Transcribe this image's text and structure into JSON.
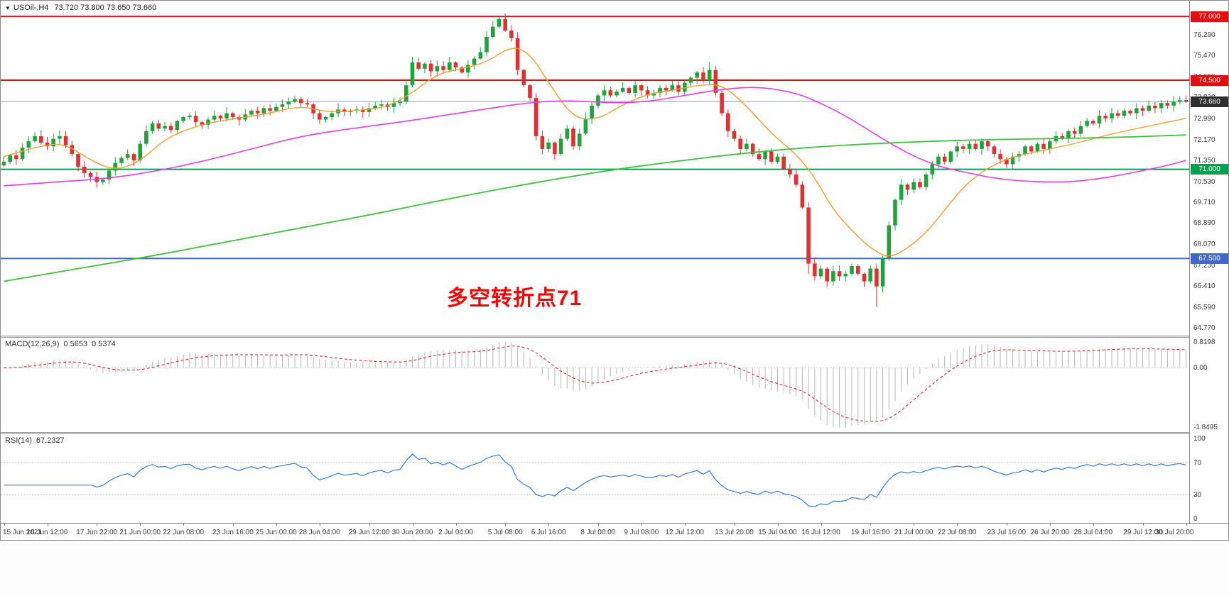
{
  "header": {
    "symbol": "USOil-,H4",
    "ohlc_text": "73.720 73.800 73.650 73.660"
  },
  "annotation": {
    "text": "多空转折点71",
    "color": "#ff0000"
  },
  "colors": {
    "candle_up": "#1fa33c",
    "candle_down": "#e03030",
    "macd_histogram": "#b6b6b6",
    "macd_signal": "#e02020",
    "rsi_line": "#3a7bd5",
    "level_line": "#c0c0c0"
  },
  "price_axis": {
    "ticks": [
      "76.290",
      "75.470",
      "74.650",
      "73.830",
      "72.990",
      "72.170",
      "71.350",
      "70.530",
      "69.710",
      "68.890",
      "68.070",
      "67.230",
      "66.410",
      "65.590",
      "64.770"
    ],
    "badges": [
      {
        "text": "77.000",
        "price": 77.0,
        "bg": "#dd1111"
      },
      {
        "text": "74.500",
        "price": 74.5,
        "bg": "#dd1111"
      },
      {
        "text": "71.000",
        "price": 71.0,
        "bg": "#00a24d"
      },
      {
        "text": "67.500",
        "price": 67.5,
        "bg": "#3f66c9"
      },
      {
        "text": "73.660",
        "price": 73.66,
        "bg": "#2e2e2e"
      }
    ]
  },
  "indicators": {
    "macd": {
      "name": "MACD(12,26,9)",
      "value_main": "0.5653",
      "value_signal": "0.5374",
      "axis_top": "0.8198",
      "axis_zero": "0.00",
      "axis_bottom": "-1.8495",
      "fast": 12,
      "slow": 26,
      "signal": 9
    },
    "rsi": {
      "name": "RSI(14)",
      "value": "67.2327",
      "period": 14,
      "axis": [
        "100",
        "70",
        "30",
        "0"
      ],
      "levels": [
        70,
        30
      ]
    }
  },
  "time_axis": [
    "15 Jun 2021",
    "16 Jun 12:00",
    "17 Jun 22:00",
    "21 Jun 00:00",
    "22 Jun 08:00",
    "23 Jun 16:00",
    "25 Jun 00:00",
    "28 Jun 04:00",
    "29 Jun 12:00",
    "30 Jun 20:00",
    "2 Jul 04:00",
    "5 Jul 08:00",
    "6 Jul 16:00",
    "8 Jul 00:00",
    "9 Jul 08:00",
    "12 Jul 12:00",
    "13 Jul 20:00",
    "15 Jul 04:00",
    "16 Jul 12:00",
    "19 Jul 16:00",
    "21 Jul 00:00",
    "22 Jul 08:00",
    "23 Jul 16:00",
    "26 Jul 20:00",
    "28 Jul 04:00",
    "29 Jul 12:00",
    "30 Jul 20:00"
  ],
  "chart_data": {
    "type": "candlestick",
    "symbol": "USOil",
    "timeframe": "H4",
    "title": "USOil-,H4",
    "current_bar": {
      "open": 73.72,
      "high": 73.8,
      "low": 73.65,
      "close": 73.66
    },
    "view": {
      "price_top": 77.62,
      "price_bottom": 64.47
    },
    "first_open": 71.15,
    "closes": [
      71.3,
      71.55,
      71.4,
      71.85,
      72.1,
      72.3,
      72.05,
      71.9,
      72.2,
      72.3,
      71.95,
      71.6,
      71.1,
      70.85,
      70.7,
      70.5,
      70.6,
      70.95,
      71.25,
      71.45,
      71.6,
      71.35,
      72.0,
      72.5,
      72.8,
      72.6,
      72.7,
      72.55,
      72.9,
      73.05,
      73.1,
      72.85,
      72.75,
      72.95,
      73.1,
      73.0,
      73.2,
      73.05,
      72.95,
      73.15,
      73.3,
      73.2,
      73.4,
      73.3,
      73.45,
      73.55,
      73.65,
      73.75,
      73.6,
      73.55,
      73.2,
      72.95,
      73.05,
      73.2,
      73.35,
      73.25,
      73.3,
      73.35,
      73.25,
      73.4,
      73.5,
      73.55,
      73.45,
      73.6,
      73.65,
      74.3,
      75.2,
      74.95,
      75.15,
      74.85,
      75.05,
      74.9,
      75.2,
      75.0,
      74.8,
      75.1,
      75.35,
      75.6,
      76.2,
      76.6,
      76.9,
      76.45,
      76.15,
      74.9,
      74.3,
      73.8,
      72.3,
      71.8,
      72.05,
      71.6,
      72.2,
      72.6,
      71.9,
      72.4,
      73.0,
      73.5,
      73.9,
      74.1,
      73.9,
      74.05,
      74.2,
      74.0,
      74.3,
      74.1,
      73.9,
      74.0,
      74.2,
      74.1,
      74.3,
      74.05,
      74.4,
      74.6,
      74.8,
      74.5,
      74.9,
      74.0,
      73.2,
      72.5,
      72.2,
      71.8,
      72.0,
      71.6,
      71.4,
      71.7,
      71.3,
      71.5,
      71.0,
      70.8,
      70.4,
      69.5,
      67.3,
      66.8,
      67.1,
      66.6,
      67.0,
      66.8,
      66.9,
      67.2,
      66.9,
      66.6,
      67.1,
      66.4,
      67.5,
      68.8,
      69.8,
      70.4,
      70.2,
      70.5,
      70.3,
      70.8,
      71.2,
      71.5,
      71.3,
      71.7,
      71.9,
      71.8,
      72.0,
      71.8,
      72.1,
      71.9,
      71.6,
      71.4,
      71.2,
      71.5,
      71.6,
      71.9,
      71.7,
      72.0,
      71.8,
      72.1,
      72.3,
      72.2,
      72.5,
      72.4,
      72.7,
      72.9,
      72.8,
      73.1,
      73.0,
      73.2,
      73.1,
      73.3,
      73.2,
      73.4,
      73.3,
      73.5,
      73.4,
      73.6,
      73.5,
      73.65,
      73.72,
      73.66
    ],
    "wick_overrides": {
      "80": {
        "high": 76.98
      },
      "114": {
        "high": 75.22
      },
      "130": {
        "low": 66.9
      },
      "141": {
        "low": 65.59
      }
    },
    "h_lines": [
      {
        "price": 77.0,
        "color": "#dd1111",
        "width": 2
      },
      {
        "price": 74.5,
        "color": "#dd1111",
        "width": 2
      },
      {
        "price": 71.0,
        "color": "#00a24d",
        "width": 2
      },
      {
        "price": 67.5,
        "color": "#3f66c9",
        "width": 2
      }
    ],
    "bid_line": {
      "price": 73.66,
      "color": "#7d9ec8",
      "label": "73.660"
    },
    "moving_averages": [
      {
        "name": "fast-orange",
        "color": "#f0a030",
        "width": 1.4,
        "points": [
          [
            0,
            71.5
          ],
          [
            6,
            71.95
          ],
          [
            10,
            72.0
          ],
          [
            14,
            71.35
          ],
          [
            18,
            70.95
          ],
          [
            22,
            71.3
          ],
          [
            26,
            72.2
          ],
          [
            31,
            72.7
          ],
          [
            36,
            72.95
          ],
          [
            42,
            73.15
          ],
          [
            48,
            73.5
          ],
          [
            52,
            73.25
          ],
          [
            57,
            73.3
          ],
          [
            62,
            73.45
          ],
          [
            66,
            74.0
          ],
          [
            70,
            74.75
          ],
          [
            74,
            74.95
          ],
          [
            78,
            75.2
          ],
          [
            82,
            75.85
          ],
          [
            85,
            75.55
          ],
          [
            88,
            74.4
          ],
          [
            92,
            73.0
          ],
          [
            96,
            72.95
          ],
          [
            100,
            73.55
          ],
          [
            104,
            73.95
          ],
          [
            108,
            74.1
          ],
          [
            112,
            74.3
          ],
          [
            116,
            74.35
          ],
          [
            120,
            73.5
          ],
          [
            124,
            72.4
          ],
          [
            128,
            71.6
          ],
          [
            131,
            70.7
          ],
          [
            134,
            69.4
          ],
          [
            137,
            68.6
          ],
          [
            140,
            67.9
          ],
          [
            143,
            67.5
          ],
          [
            146,
            67.9
          ],
          [
            149,
            68.5
          ],
          [
            152,
            69.4
          ],
          [
            155,
            70.3
          ],
          [
            158,
            70.9
          ],
          [
            161,
            71.3
          ],
          [
            164,
            71.55
          ],
          [
            168,
            71.75
          ],
          [
            172,
            71.95
          ],
          [
            176,
            72.2
          ],
          [
            180,
            72.45
          ],
          [
            184,
            72.65
          ],
          [
            188,
            72.85
          ],
          [
            191,
            73.0
          ]
        ]
      },
      {
        "name": "mid-magenta",
        "color": "#e63ce6",
        "width": 1.6,
        "points": [
          [
            0,
            70.35
          ],
          [
            8,
            70.5
          ],
          [
            16,
            70.62
          ],
          [
            24,
            70.9
          ],
          [
            32,
            71.3
          ],
          [
            40,
            71.8
          ],
          [
            48,
            72.3
          ],
          [
            56,
            72.6
          ],
          [
            64,
            72.85
          ],
          [
            72,
            73.15
          ],
          [
            80,
            73.45
          ],
          [
            86,
            73.65
          ],
          [
            92,
            73.7
          ],
          [
            98,
            73.6
          ],
          [
            104,
            73.65
          ],
          [
            110,
            73.9
          ],
          [
            116,
            74.15
          ],
          [
            122,
            74.25
          ],
          [
            128,
            74.0
          ],
          [
            132,
            73.6
          ],
          [
            136,
            73.1
          ],
          [
            140,
            72.5
          ],
          [
            144,
            71.9
          ],
          [
            148,
            71.4
          ],
          [
            152,
            71.05
          ],
          [
            156,
            70.85
          ],
          [
            160,
            70.65
          ],
          [
            164,
            70.55
          ],
          [
            168,
            70.5
          ],
          [
            172,
            70.5
          ],
          [
            176,
            70.6
          ],
          [
            180,
            70.75
          ],
          [
            184,
            70.95
          ],
          [
            188,
            71.15
          ],
          [
            191,
            71.35
          ]
        ]
      },
      {
        "name": "slow-green",
        "color": "#3cc23c",
        "width": 1.8,
        "points": [
          [
            0,
            66.6
          ],
          [
            12,
            67.1
          ],
          [
            24,
            67.6
          ],
          [
            36,
            68.15
          ],
          [
            48,
            68.7
          ],
          [
            60,
            69.25
          ],
          [
            72,
            69.85
          ],
          [
            84,
            70.4
          ],
          [
            96,
            70.9
          ],
          [
            108,
            71.3
          ],
          [
            120,
            71.65
          ],
          [
            132,
            71.9
          ],
          [
            144,
            72.05
          ],
          [
            156,
            72.15
          ],
          [
            168,
            72.2
          ],
          [
            180,
            72.25
          ],
          [
            191,
            72.35
          ]
        ]
      }
    ]
  }
}
